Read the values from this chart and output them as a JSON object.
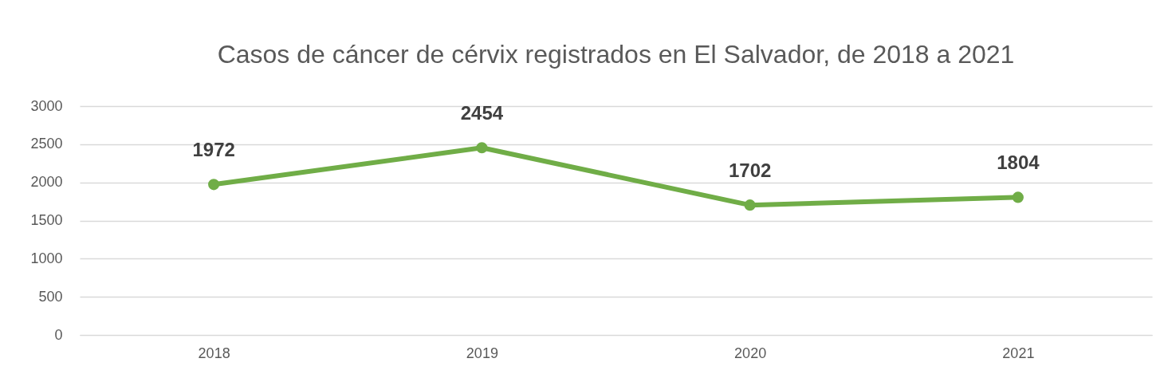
{
  "chart_data": {
    "type": "line",
    "title": "Casos de cáncer de cérvix registrados en El Salvador, de 2018 a 2021",
    "categories": [
      "2018",
      "2019",
      "2020",
      "2021"
    ],
    "series": [
      {
        "color": "#70ad47",
        "values": [
          1972,
          2454,
          1702,
          1804
        ]
      }
    ],
    "ylim": [
      0,
      3000
    ],
    "yticks": [
      0,
      500,
      1000,
      1500,
      2000,
      2500,
      3000
    ],
    "grid": "y",
    "data_labels": true,
    "marker": "circle",
    "line_style": "solid"
  }
}
